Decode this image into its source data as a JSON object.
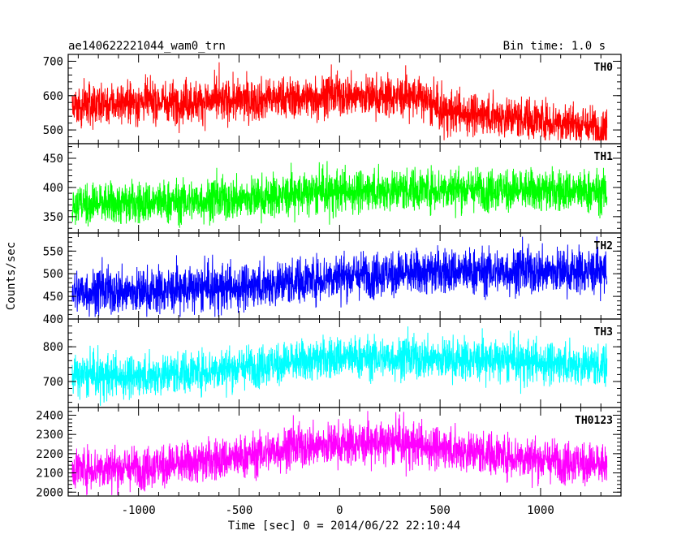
{
  "chart_data": {
    "type": "line",
    "title": "ae140622221044_wam0_trn",
    "subtitle": "Bin time: 1.0 s",
    "xlabel": "Time [sec] 0 = 2014/06/22 22:10:44",
    "ylabel": "Counts/sec",
    "xlim": [
      -1350,
      1400
    ],
    "x_range": [
      -1330,
      1330
    ],
    "x_ticks": [
      -1000,
      -500,
      0,
      500,
      1000
    ],
    "grid": false,
    "series": [
      {
        "name": "TH0",
        "color": "#ff0000",
        "ylim": [
          460,
          720
        ],
        "y_ticks": [
          500,
          600,
          700
        ],
        "trend_x": [
          -1330,
          -1000,
          -500,
          0,
          400,
          500,
          1000,
          1250,
          1330
        ],
        "trend_y": [
          575,
          580,
          585,
          600,
          595,
          555,
          530,
          510,
          500
        ],
        "spread": 30,
        "y_min": 470,
        "y_max": 720
      },
      {
        "name": "TH1",
        "color": "#00ff00",
        "ylim": [
          322,
          475
        ],
        "y_ticks": [
          350,
          400,
          450
        ],
        "trend_x": [
          -1330,
          -1000,
          -500,
          0,
          500,
          1000,
          1330
        ],
        "trend_y": [
          372,
          373,
          380,
          393,
          398,
          395,
          392
        ],
        "spread": 18,
        "y_min": 325,
        "y_max": 470
      },
      {
        "name": "TH2",
        "color": "#0000ff",
        "ylim": [
          400,
          590
        ],
        "y_ticks": [
          400,
          450,
          500,
          550
        ],
        "trend_x": [
          -1330,
          -1000,
          -500,
          0,
          500,
          1000,
          1330
        ],
        "trend_y": [
          460,
          460,
          470,
          495,
          505,
          505,
          505
        ],
        "spread": 25,
        "y_min": 405,
        "y_max": 590
      },
      {
        "name": "TH3",
        "color": "#00ffff",
        "ylim": [
          625,
          880
        ],
        "y_ticks": [
          700,
          800
        ],
        "trend_x": [
          -1330,
          -1000,
          -500,
          0,
          500,
          1000,
          1330
        ],
        "trend_y": [
          715,
          715,
          740,
          770,
          765,
          755,
          745
        ],
        "spread": 30,
        "y_min": 630,
        "y_max": 875
      },
      {
        "name": "TH0123",
        "color": "#ff00ff",
        "ylim": [
          1980,
          2440
        ],
        "y_ticks": [
          2000,
          2100,
          2200,
          2300,
          2400
        ],
        "trend_x": [
          -1330,
          -1000,
          -500,
          -250,
          0,
          300,
          500,
          1000,
          1330
        ],
        "trend_y": [
          2125,
          2125,
          2180,
          2230,
          2250,
          2255,
          2230,
          2170,
          2140
        ],
        "spread": 55,
        "y_min": 1985,
        "y_max": 2430
      }
    ]
  }
}
